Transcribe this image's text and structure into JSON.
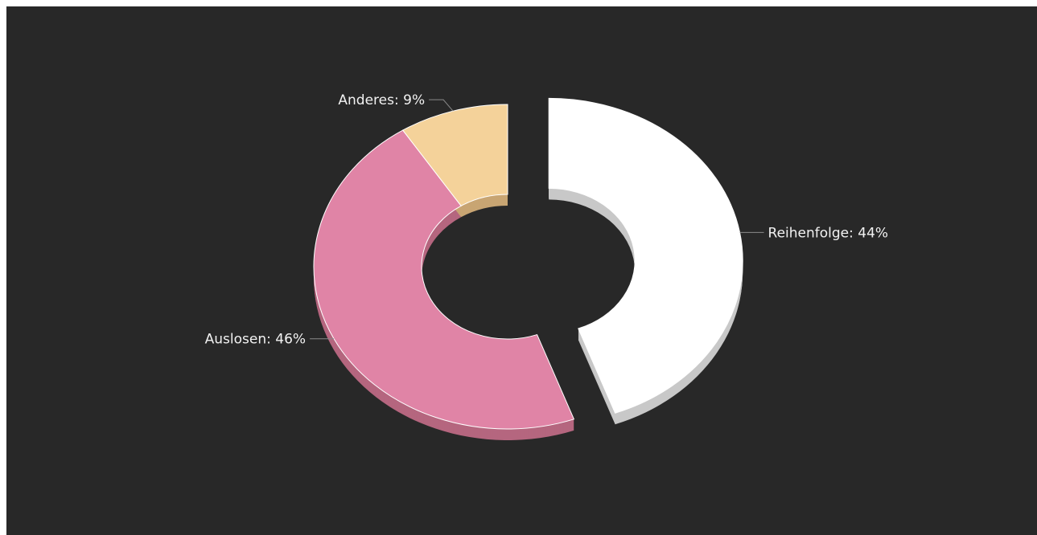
{
  "colors": {
    "background": "#282828",
    "label": "#f2f2f2",
    "leader": "#8a8a8a"
  },
  "chart_data": {
    "type": "pie",
    "variant": "donut-3d-exploded",
    "title": "",
    "slices": [
      {
        "name": "Reihenfolge",
        "value": 44,
        "label": "Reihenfolge: 44%",
        "color": "#ffffff",
        "shadow": "#c8c8c8",
        "exploded": true
      },
      {
        "name": "Auslosen",
        "value": 46,
        "label": "Auslosen: 46%",
        "color": "#e084a6",
        "shadow": "#b5667f",
        "exploded": false
      },
      {
        "name": "Anderes",
        "value": 9,
        "label": "Anderes: 9%",
        "color": "#f4d29a",
        "shadow": "#c8a573",
        "exploded": false
      }
    ],
    "legend": "none",
    "labels": "outside-with-leaders"
  }
}
